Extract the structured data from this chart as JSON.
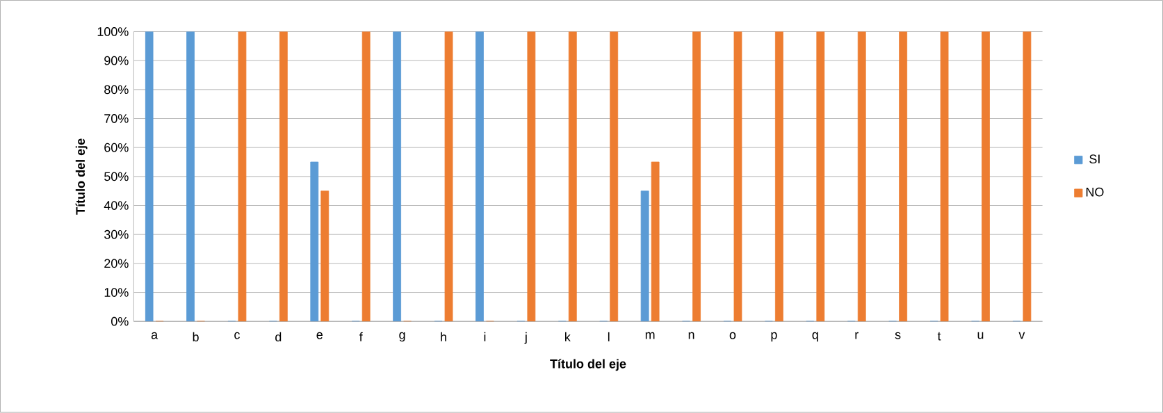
{
  "chart_data": {
    "type": "bar",
    "xlabel": "Título del eje",
    "ylabel": "Título del eje",
    "categories": [
      "a",
      "b",
      "c",
      "d",
      "e",
      "f",
      "g",
      "h",
      "i",
      "j",
      "k",
      "l",
      "m",
      "n",
      "o",
      "p",
      "q",
      "r",
      "s",
      "t",
      "u",
      "v"
    ],
    "series": [
      {
        "name": "SI",
        "color": "#5b9bd5",
        "values": [
          100,
          100,
          0,
          0,
          55,
          0,
          100,
          0,
          100,
          0,
          0,
          0,
          45,
          0,
          0,
          0,
          0,
          0,
          0,
          0,
          0,
          0
        ]
      },
      {
        "name": "NO",
        "color": "#ed7d31",
        "values": [
          0,
          0,
          100,
          100,
          45,
          100,
          0,
          100,
          0,
          100,
          100,
          100,
          55,
          100,
          100,
          100,
          100,
          100,
          100,
          100,
          100,
          100
        ]
      }
    ],
    "ylim": [
      0,
      100
    ],
    "yticks": [
      {
        "value": 0,
        "label": "0%"
      },
      {
        "value": 10,
        "label": "10%"
      },
      {
        "value": 20,
        "label": "20%"
      },
      {
        "value": 30,
        "label": "30%"
      },
      {
        "value": 40,
        "label": "40%"
      },
      {
        "value": 50,
        "label": "50%"
      },
      {
        "value": 60,
        "label": "60%"
      },
      {
        "value": 70,
        "label": "70%"
      },
      {
        "value": 80,
        "label": "80%"
      },
      {
        "value": 90,
        "label": "90%"
      },
      {
        "value": 100,
        "label": "100%"
      }
    ],
    "grid": "y",
    "legend": "right"
  }
}
